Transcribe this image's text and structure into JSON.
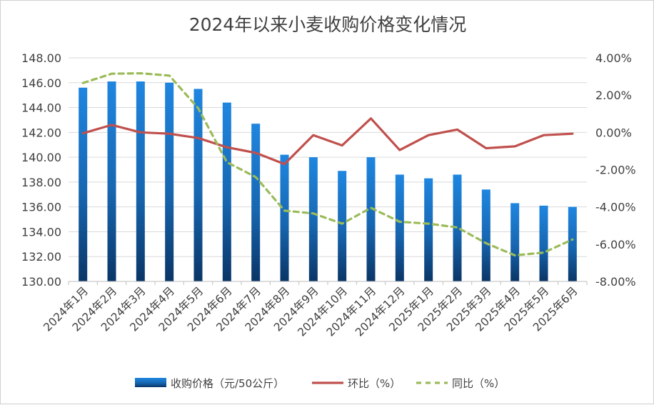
{
  "chart_data": {
    "type": "bar+line",
    "title": "2024年以来小麦收购价格变化情况",
    "categories": [
      "2024年1月",
      "2024年2月",
      "2024年3月",
      "2024年4月",
      "2024年5月",
      "2024年6月",
      "2024年7月",
      "2024年8月",
      "2024年9月",
      "2024年10月",
      "2024年11月",
      "2024年12月",
      "2025年1月",
      "2025年2月",
      "2025年3月",
      "2025年4月",
      "2025年5月",
      "2025年6月"
    ],
    "series": [
      {
        "name": "收购价格（元/50公斤）",
        "kind": "bar",
        "axis": "left",
        "color": "#1f7fd6",
        "values": [
          145.6,
          146.1,
          146.1,
          146.0,
          145.5,
          144.4,
          142.7,
          140.2,
          140.0,
          138.9,
          140.0,
          138.6,
          138.3,
          138.6,
          137.4,
          136.3,
          136.1,
          136.0
        ]
      },
      {
        "name": "环比（%）",
        "kind": "line",
        "axis": "right",
        "color": "#c0504d",
        "dash": false,
        "values": [
          -0.05,
          0.4,
          0.0,
          -0.07,
          -0.3,
          -0.8,
          -1.1,
          -1.7,
          -0.15,
          -0.7,
          0.75,
          -0.95,
          -0.15,
          0.15,
          -0.85,
          -0.75,
          -0.15,
          -0.07
        ]
      },
      {
        "name": "同比（%）",
        "kind": "line",
        "axis": "right",
        "color": "#9bbb59",
        "dash": true,
        "values": [
          2.65,
          3.15,
          3.17,
          3.05,
          1.3,
          -1.6,
          -2.4,
          -4.2,
          -4.35,
          -4.9,
          -4.05,
          -4.8,
          -4.9,
          -5.1,
          -5.95,
          -6.6,
          -6.45,
          -5.75
        ]
      }
    ],
    "y_left": {
      "min": 130,
      "max": 148,
      "step": 2,
      "tick_labels": [
        "130.00",
        "132.00",
        "134.00",
        "136.00",
        "138.00",
        "140.00",
        "142.00",
        "144.00",
        "146.00",
        "148.00"
      ]
    },
    "y_right": {
      "min": -8,
      "max": 4,
      "step": 2,
      "tick_labels": [
        "-8.00%",
        "-6.00%",
        "-4.00%",
        "-2.00%",
        "0.00%",
        "2.00%",
        "4.00%"
      ]
    },
    "grid": true,
    "legend_position": "bottom"
  }
}
